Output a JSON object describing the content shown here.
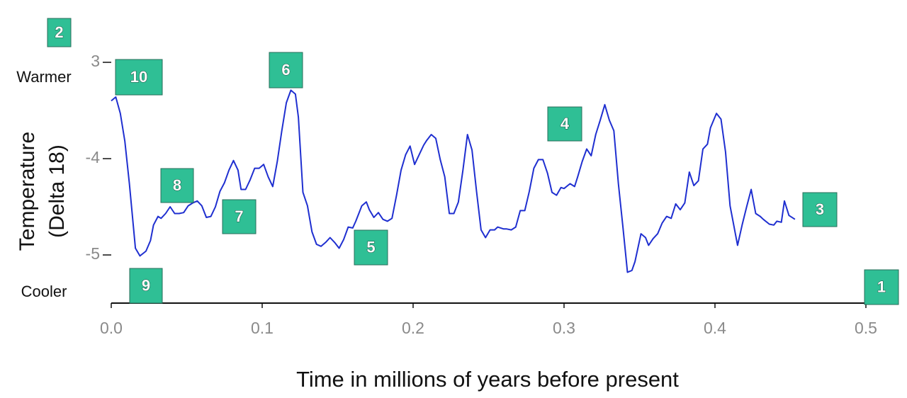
{
  "chart_data": {
    "type": "line",
    "x_label": "Time in millions of years before present",
    "y_label": [
      "Temperature",
      "(Delta 18)"
    ],
    "warm_label": "Warmer",
    "cool_label": "Cooler",
    "annotations": [
      "1",
      "2",
      "3",
      "4",
      "5",
      "6",
      "7",
      "8",
      "9",
      "10"
    ],
    "color": "#1f2fd0",
    "xlim": [
      0,
      0.5
    ],
    "xticks": [
      {
        "value": 0,
        "label": "0.0"
      },
      0.1,
      0.2,
      0.3,
      0.4,
      0.5
    ],
    "ylim": [
      -5.5,
      -3
    ],
    "yticks": [
      {
        "value": -3,
        "label": "3"
      },
      -4,
      -5
    ],
    "x": [
      0.0,
      0.003,
      0.006,
      0.009,
      0.012,
      0.016,
      0.019,
      0.023,
      0.026,
      0.028,
      0.031,
      0.033,
      0.036,
      0.039,
      0.042,
      0.045,
      0.048,
      0.051,
      0.054,
      0.057,
      0.06,
      0.063,
      0.066,
      0.069,
      0.072,
      0.075,
      0.078,
      0.081,
      0.084,
      0.086,
      0.089,
      0.092,
      0.095,
      0.098,
      0.101,
      0.104,
      0.107,
      0.11,
      0.113,
      0.116,
      0.119,
      0.122,
      0.124,
      0.127,
      0.13,
      0.133,
      0.136,
      0.139,
      0.142,
      0.145,
      0.148,
      0.151,
      0.154,
      0.157,
      0.16,
      0.162,
      0.166,
      0.169,
      0.171,
      0.174,
      0.177,
      0.18,
      0.183,
      0.186,
      0.189,
      0.192,
      0.195,
      0.198,
      0.201,
      0.204,
      0.207,
      0.209,
      0.212,
      0.215,
      0.218,
      0.221,
      0.224,
      0.227,
      0.23,
      0.233,
      0.236,
      0.239,
      0.242,
      0.245,
      0.248,
      0.251,
      0.254,
      0.256,
      0.26,
      0.262,
      0.265,
      0.268,
      0.271,
      0.274,
      0.277,
      0.28,
      0.283,
      0.286,
      0.289,
      0.292,
      0.295,
      0.298,
      0.3,
      0.304,
      0.307,
      0.309,
      0.312,
      0.315,
      0.318,
      0.321,
      0.324,
      0.327,
      0.33,
      0.333,
      0.336,
      0.339,
      0.342,
      0.345,
      0.347,
      0.351,
      0.354,
      0.356,
      0.359,
      0.362,
      0.365,
      0.368,
      0.371,
      0.374,
      0.377,
      0.38,
      0.383,
      0.386,
      0.389,
      0.392,
      0.395,
      0.397,
      0.401,
      0.404,
      0.407,
      0.41,
      0.415,
      0.418,
      0.421,
      0.424,
      0.427,
      0.43,
      0.432,
      0.436,
      0.439,
      0.441,
      0.444,
      0.446,
      0.449,
      0.453
    ],
    "values": [
      -3.4,
      -3.36,
      -3.53,
      -3.82,
      -4.26,
      -4.93,
      -5.01,
      -4.96,
      -4.85,
      -4.69,
      -4.6,
      -4.62,
      -4.57,
      -4.5,
      -4.57,
      -4.57,
      -4.56,
      -4.49,
      -4.46,
      -4.44,
      -4.49,
      -4.61,
      -4.6,
      -4.5,
      -4.34,
      -4.25,
      -4.12,
      -4.02,
      -4.12,
      -4.32,
      -4.32,
      -4.22,
      -4.1,
      -4.1,
      -4.06,
      -4.19,
      -4.29,
      -4.03,
      -3.71,
      -3.42,
      -3.29,
      -3.33,
      -3.57,
      -4.35,
      -4.49,
      -4.76,
      -4.89,
      -4.91,
      -4.87,
      -4.82,
      -4.87,
      -4.93,
      -4.84,
      -4.71,
      -4.72,
      -4.65,
      -4.49,
      -4.45,
      -4.53,
      -4.61,
      -4.56,
      -4.63,
      -4.65,
      -4.62,
      -4.38,
      -4.12,
      -3.96,
      -3.87,
      -4.06,
      -3.96,
      -3.86,
      -3.81,
      -3.75,
      -3.79,
      -4.01,
      -4.19,
      -4.57,
      -4.57,
      -4.45,
      -4.12,
      -3.75,
      -3.91,
      -4.34,
      -4.74,
      -4.82,
      -4.74,
      -4.74,
      -4.71,
      -4.73,
      -4.73,
      -4.74,
      -4.71,
      -4.54,
      -4.54,
      -4.34,
      -4.1,
      -4.01,
      -4.01,
      -4.15,
      -4.35,
      -4.38,
      -4.3,
      -4.31,
      -4.26,
      -4.29,
      -4.19,
      -4.03,
      -3.9,
      -3.97,
      -3.75,
      -3.6,
      -3.44,
      -3.6,
      -3.71,
      -4.26,
      -4.71,
      -5.18,
      -5.16,
      -5.07,
      -4.78,
      -4.82,
      -4.9,
      -4.83,
      -4.78,
      -4.67,
      -4.6,
      -4.62,
      -4.47,
      -4.53,
      -4.46,
      -4.14,
      -4.28,
      -4.23,
      -3.9,
      -3.85,
      -3.68,
      -3.53,
      -3.59,
      -3.93,
      -4.49,
      -4.9,
      -4.69,
      -4.5,
      -4.32,
      -4.57,
      -4.6,
      -4.63,
      -4.68,
      -4.69,
      -4.65,
      -4.66,
      -4.44,
      -4.59,
      -4.63
    ]
  }
}
